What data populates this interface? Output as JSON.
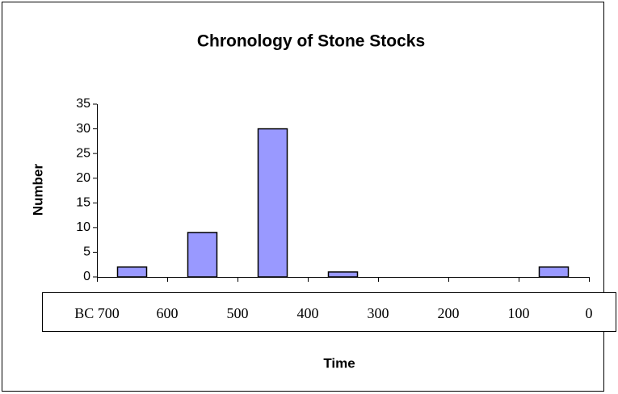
{
  "chart_data": {
    "type": "bar",
    "title": "Chronology of Stone Stocks",
    "x_label": "Time",
    "y_label": "Number",
    "x_labels": [
      "BC 700",
      "600",
      "500",
      "400",
      "300",
      "200",
      "100",
      "0"
    ],
    "values": [
      2,
      9,
      30,
      1,
      0,
      0,
      2
    ],
    "color": "#9999ff",
    "ylim": [
      0,
      35
    ],
    "yticks": [
      0,
      5,
      10,
      15,
      20,
      25,
      30,
      35
    ],
    "grid": false
  }
}
